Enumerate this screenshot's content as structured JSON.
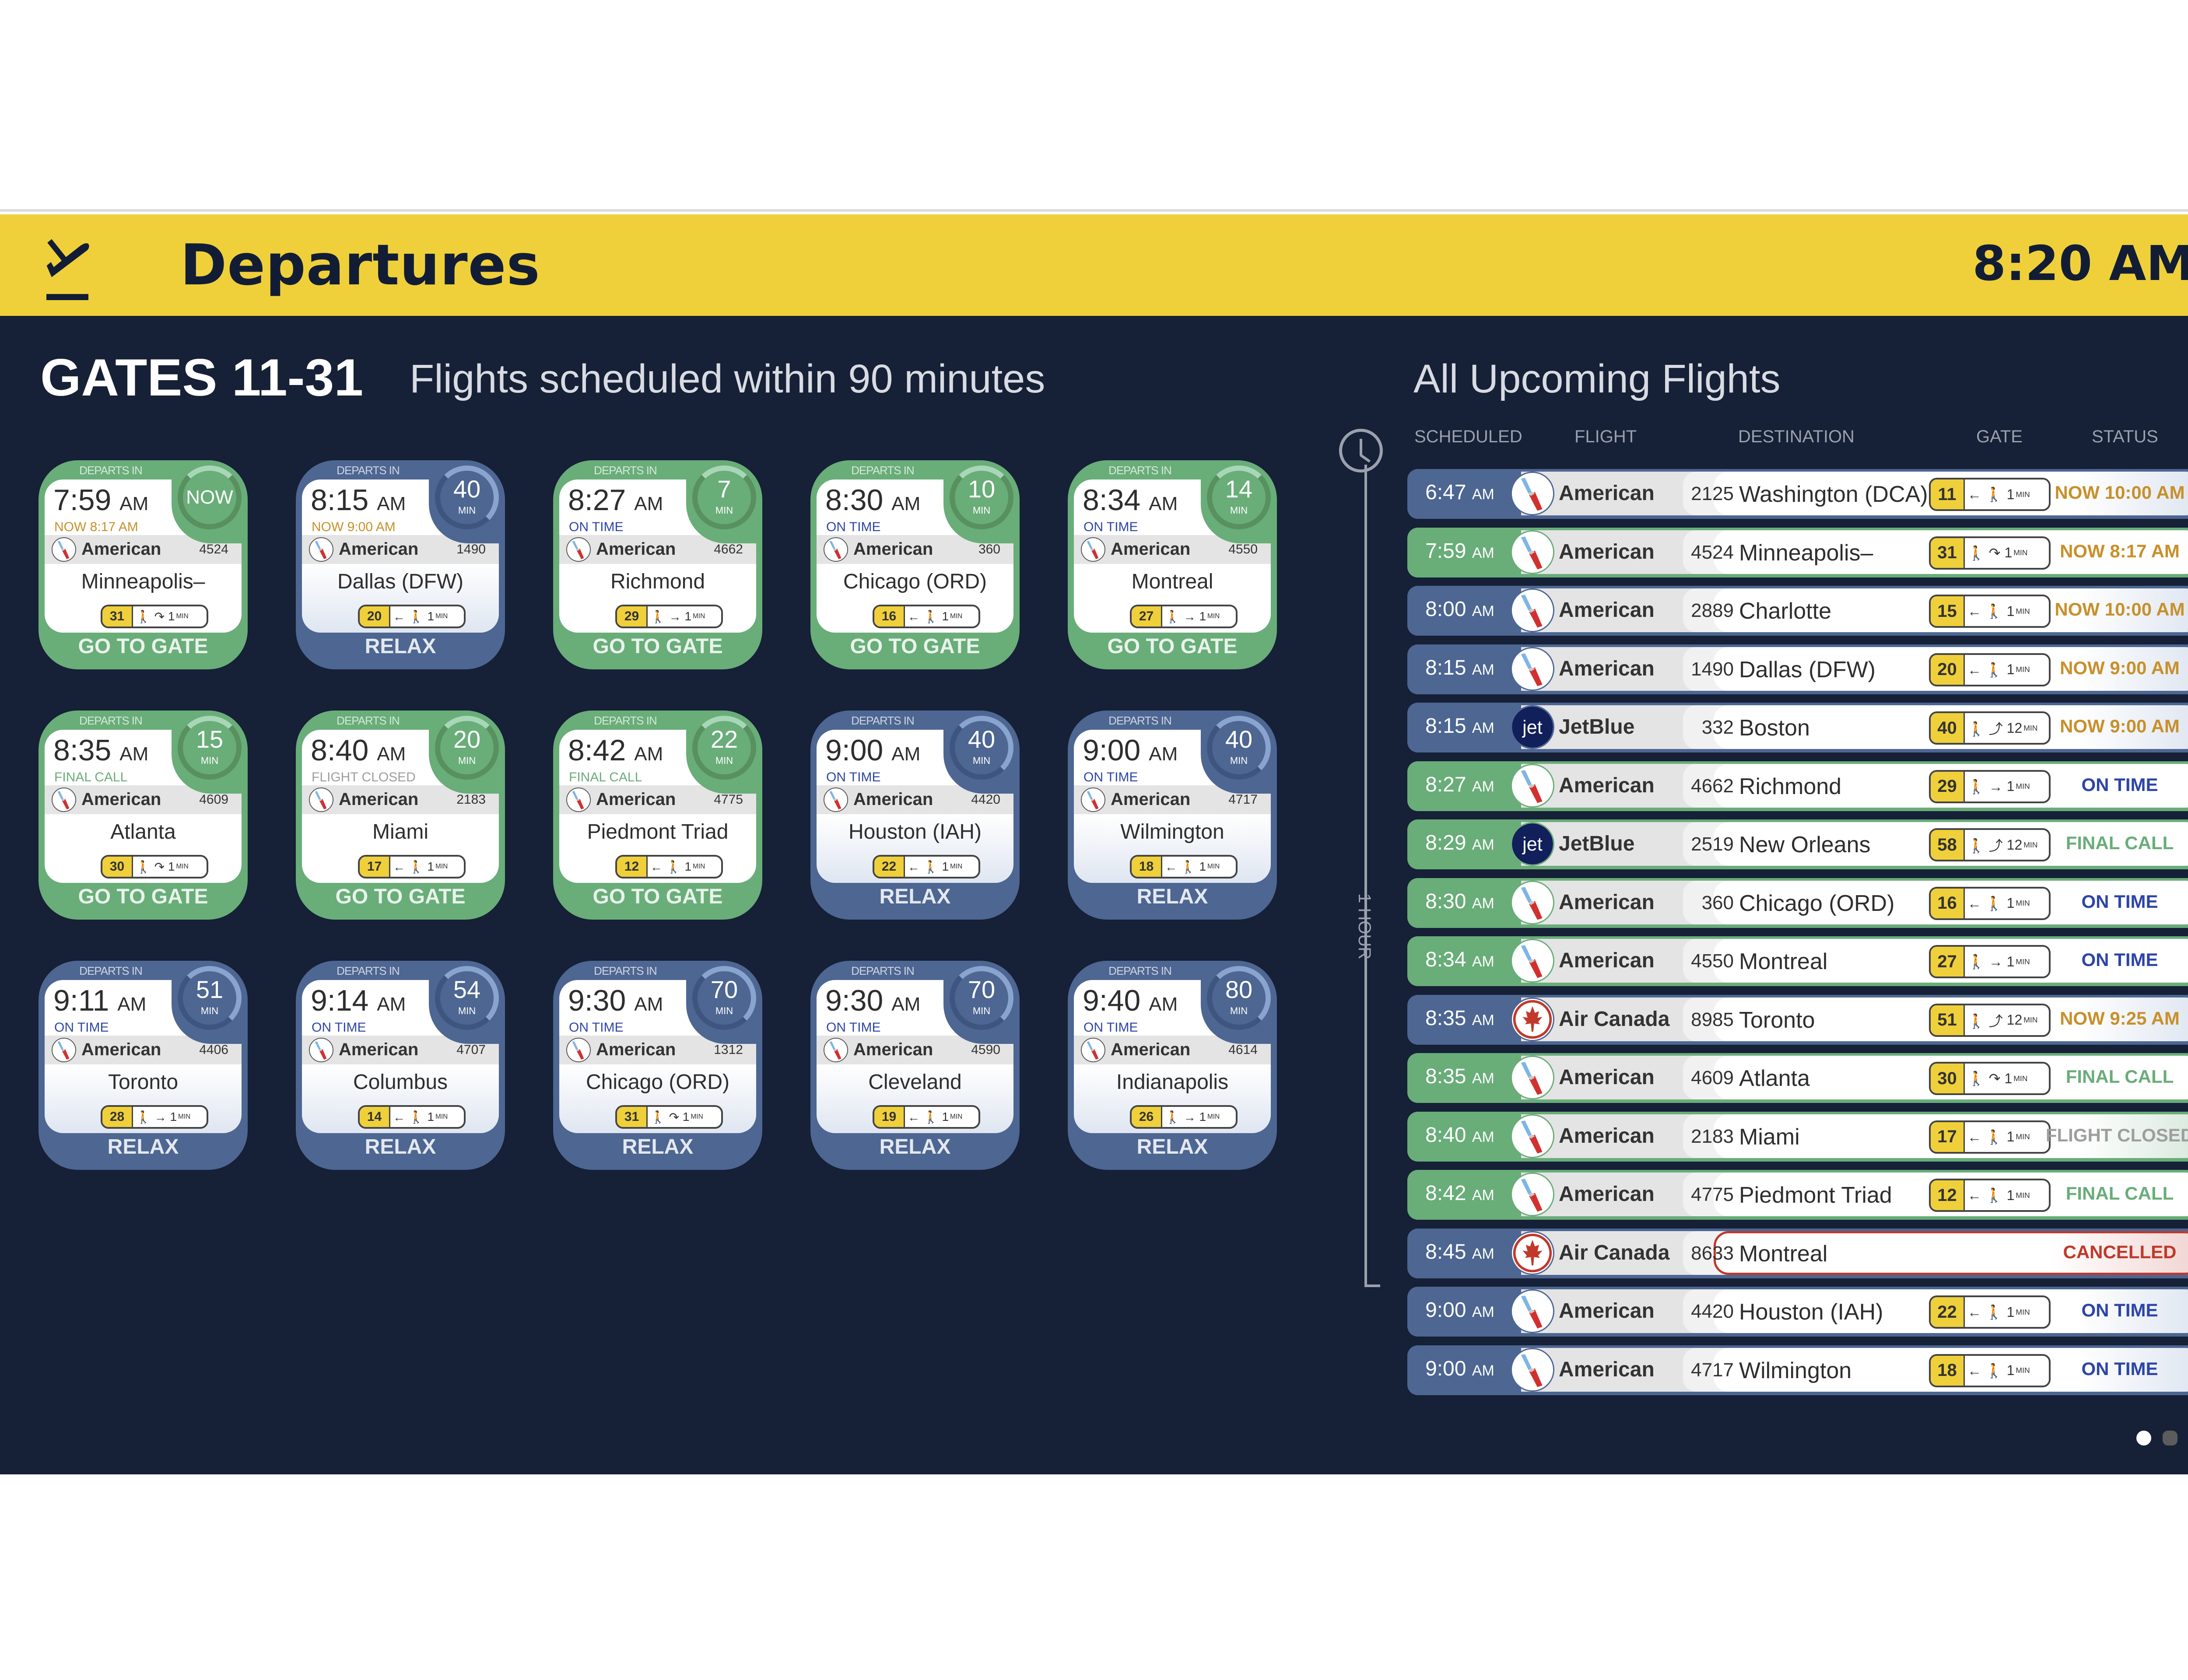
{
  "header": {
    "title": "Departures",
    "current_time": "8:20 AM",
    "icon": "plane-departure-icon",
    "background": "#efd03a"
  },
  "colors": {
    "go_to_gate": "#69ad79",
    "relax": "#4d6692",
    "background": "#162036",
    "gate_badge": "#efd03a",
    "status_now": "#c8902a",
    "status_on_time": "#2d45a8",
    "status_final_call": "#69ad79",
    "status_closed": "#9e9e9e",
    "status_cancelled": "#c0392b"
  },
  "gates_panel": {
    "title": "GATES 11-31",
    "subtitle": "Flights scheduled within 90 minutes",
    "departs_in_label": "DEPARTS IN",
    "min_label": "MIN",
    "cards": [
      {
        "time": "7:59",
        "ampm": "AM",
        "status": "NOW 8:17 AM",
        "status_type": "now",
        "airline": "American",
        "flight": "4524",
        "destination": "Minneapolis–",
        "gate": "31",
        "walk": "🚶 ↷",
        "walk_min": "1",
        "departs_in": "NOW",
        "action": "GO TO GATE",
        "theme": "green"
      },
      {
        "time": "8:15",
        "ampm": "AM",
        "status": "NOW 9:00 AM",
        "status_type": "now",
        "airline": "American",
        "flight": "1490",
        "destination": "Dallas (DFW)",
        "gate": "20",
        "walk": "← 🚶",
        "walk_min": "1",
        "departs_in": "40",
        "action": "RELAX",
        "theme": "blue"
      },
      {
        "time": "8:27",
        "ampm": "AM",
        "status": "ON TIME",
        "status_type": "ontime",
        "airline": "American",
        "flight": "4662",
        "destination": "Richmond",
        "gate": "29",
        "walk": "🚶 →",
        "walk_min": "1",
        "departs_in": "7",
        "action": "GO TO GATE",
        "theme": "green"
      },
      {
        "time": "8:30",
        "ampm": "AM",
        "status": "ON TIME",
        "status_type": "ontime",
        "airline": "American",
        "flight": "360",
        "destination": "Chicago (ORD)",
        "gate": "16",
        "walk": "← 🚶",
        "walk_min": "1",
        "departs_in": "10",
        "action": "GO TO GATE",
        "theme": "green"
      },
      {
        "time": "8:34",
        "ampm": "AM",
        "status": "ON TIME",
        "status_type": "ontime",
        "airline": "American",
        "flight": "4550",
        "destination": "Montreal",
        "gate": "27",
        "walk": "🚶 →",
        "walk_min": "1",
        "departs_in": "14",
        "action": "GO TO GATE",
        "theme": "green"
      },
      {
        "time": "8:35",
        "ampm": "AM",
        "status": "FINAL CALL",
        "status_type": "final",
        "airline": "American",
        "flight": "4609",
        "destination": "Atlanta",
        "gate": "30",
        "walk": "🚶 ↷",
        "walk_min": "1",
        "departs_in": "15",
        "action": "GO TO GATE",
        "theme": "green"
      },
      {
        "time": "8:40",
        "ampm": "AM",
        "status": "FLIGHT CLOSED",
        "status_type": "closed",
        "airline": "American",
        "flight": "2183",
        "destination": "Miami",
        "gate": "17",
        "walk": "← 🚶",
        "walk_min": "1",
        "departs_in": "20",
        "action": "GO TO GATE",
        "theme": "green"
      },
      {
        "time": "8:42",
        "ampm": "AM",
        "status": "FINAL CALL",
        "status_type": "final",
        "airline": "American",
        "flight": "4775",
        "destination": "Piedmont Triad",
        "gate": "12",
        "walk": "← 🚶",
        "walk_min": "1",
        "departs_in": "22",
        "action": "GO TO GATE",
        "theme": "green"
      },
      {
        "time": "9:00",
        "ampm": "AM",
        "status": "ON TIME",
        "status_type": "ontime",
        "airline": "American",
        "flight": "4420",
        "destination": "Houston (IAH)",
        "gate": "22",
        "walk": "← 🚶",
        "walk_min": "1",
        "departs_in": "40",
        "action": "RELAX",
        "theme": "blue"
      },
      {
        "time": "9:00",
        "ampm": "AM",
        "status": "ON TIME",
        "status_type": "ontime",
        "airline": "American",
        "flight": "4717",
        "destination": "Wilmington",
        "gate": "18",
        "walk": "← 🚶",
        "walk_min": "1",
        "departs_in": "40",
        "action": "RELAX",
        "theme": "blue"
      },
      {
        "time": "9:11",
        "ampm": "AM",
        "status": "ON TIME",
        "status_type": "ontime",
        "airline": "American",
        "flight": "4406",
        "destination": "Toronto",
        "gate": "28",
        "walk": "🚶 →",
        "walk_min": "1",
        "departs_in": "51",
        "action": "RELAX",
        "theme": "blue"
      },
      {
        "time": "9:14",
        "ampm": "AM",
        "status": "ON TIME",
        "status_type": "ontime",
        "airline": "American",
        "flight": "4707",
        "destination": "Columbus",
        "gate": "14",
        "walk": "← 🚶",
        "walk_min": "1",
        "departs_in": "54",
        "action": "RELAX",
        "theme": "blue"
      },
      {
        "time": "9:30",
        "ampm": "AM",
        "status": "ON TIME",
        "status_type": "ontime",
        "airline": "American",
        "flight": "1312",
        "destination": "Chicago (ORD)",
        "gate": "31",
        "walk": "🚶 ↷",
        "walk_min": "1",
        "departs_in": "70",
        "action": "RELAX",
        "theme": "blue"
      },
      {
        "time": "9:30",
        "ampm": "AM",
        "status": "ON TIME",
        "status_type": "ontime",
        "airline": "American",
        "flight": "4590",
        "destination": "Cleveland",
        "gate": "19",
        "walk": "← 🚶",
        "walk_min": "1",
        "departs_in": "70",
        "action": "RELAX",
        "theme": "blue"
      },
      {
        "time": "9:40",
        "ampm": "AM",
        "status": "ON TIME",
        "status_type": "ontime",
        "airline": "American",
        "flight": "4614",
        "destination": "Indianapolis",
        "gate": "26",
        "walk": "🚶 →",
        "walk_min": "1",
        "departs_in": "80",
        "action": "RELAX",
        "theme": "blue"
      }
    ]
  },
  "upcoming_panel": {
    "title": "All Upcoming Flights",
    "columns": [
      "SCHEDULED",
      "FLIGHT",
      "DESTINATION",
      "GATE",
      "STATUS"
    ],
    "timeline_label": "1 HOUR",
    "min_label": "MIN",
    "rows": [
      {
        "time": "6:47",
        "ampm": "AM",
        "airline": "American",
        "logo": "aa",
        "flight": "2125",
        "destination": "Washington (DCA)",
        "gate": "11",
        "walk": "← 🚶",
        "walk_min": "1",
        "status": "NOW 10:00 AM",
        "status_type": "now",
        "theme": "blue"
      },
      {
        "time": "7:59",
        "ampm": "AM",
        "airline": "American",
        "logo": "aa",
        "flight": "4524",
        "destination": "Minneapolis–",
        "gate": "31",
        "walk": "🚶 ↷",
        "walk_min": "1",
        "status": "NOW 8:17 AM",
        "status_type": "now",
        "theme": "green"
      },
      {
        "time": "8:00",
        "ampm": "AM",
        "airline": "American",
        "logo": "aa",
        "flight": "2889",
        "destination": "Charlotte",
        "gate": "15",
        "walk": "← 🚶",
        "walk_min": "1",
        "status": "NOW 10:00 AM",
        "status_type": "now",
        "theme": "blue"
      },
      {
        "time": "8:15",
        "ampm": "AM",
        "airline": "American",
        "logo": "aa",
        "flight": "1490",
        "destination": "Dallas (DFW)",
        "gate": "20",
        "walk": "← 🚶",
        "walk_min": "1",
        "status": "NOW 9:00 AM",
        "status_type": "now",
        "theme": "blue"
      },
      {
        "time": "8:15",
        "ampm": "AM",
        "airline": "JetBlue",
        "logo": "jetblue",
        "flight": "332",
        "destination": "Boston",
        "gate": "40",
        "walk": "🚶 ⤴",
        "walk_min": "12",
        "status": "NOW 9:00 AM",
        "status_type": "now",
        "theme": "blue"
      },
      {
        "time": "8:27",
        "ampm": "AM",
        "airline": "American",
        "logo": "aa",
        "flight": "4662",
        "destination": "Richmond",
        "gate": "29",
        "walk": "🚶 →",
        "walk_min": "1",
        "status": "ON TIME",
        "status_type": "ontime",
        "theme": "green"
      },
      {
        "time": "8:29",
        "ampm": "AM",
        "airline": "JetBlue",
        "logo": "jetblue",
        "flight": "2519",
        "destination": "New Orleans",
        "gate": "58",
        "walk": "🚶 ⤴",
        "walk_min": "12",
        "status": "FINAL CALL",
        "status_type": "final",
        "theme": "green"
      },
      {
        "time": "8:30",
        "ampm": "AM",
        "airline": "American",
        "logo": "aa",
        "flight": "360",
        "destination": "Chicago (ORD)",
        "gate": "16",
        "walk": "← 🚶",
        "walk_min": "1",
        "status": "ON TIME",
        "status_type": "ontime",
        "theme": "green"
      },
      {
        "time": "8:34",
        "ampm": "AM",
        "airline": "American",
        "logo": "aa",
        "flight": "4550",
        "destination": "Montreal",
        "gate": "27",
        "walk": "🚶 →",
        "walk_min": "1",
        "status": "ON TIME",
        "status_type": "ontime",
        "theme": "green"
      },
      {
        "time": "8:35",
        "ampm": "AM",
        "airline": "Air Canada",
        "logo": "aircanada",
        "flight": "8985",
        "destination": "Toronto",
        "gate": "51",
        "walk": "🚶 ⤴",
        "walk_min": "12",
        "status": "NOW 9:25 AM",
        "status_type": "now",
        "theme": "blue"
      },
      {
        "time": "8:35",
        "ampm": "AM",
        "airline": "American",
        "logo": "aa",
        "flight": "4609",
        "destination": "Atlanta",
        "gate": "30",
        "walk": "🚶 ↷",
        "walk_min": "1",
        "status": "FINAL CALL",
        "status_type": "final",
        "theme": "green"
      },
      {
        "time": "8:40",
        "ampm": "AM",
        "airline": "American",
        "logo": "aa",
        "flight": "2183",
        "destination": "Miami",
        "gate": "17",
        "walk": "← 🚶",
        "walk_min": "1",
        "status": "FLIGHT CLOSED",
        "status_type": "closed",
        "theme": "green"
      },
      {
        "time": "8:42",
        "ampm": "AM",
        "airline": "American",
        "logo": "aa",
        "flight": "4775",
        "destination": "Piedmont Triad",
        "gate": "12",
        "walk": "← 🚶",
        "walk_min": "1",
        "status": "FINAL CALL",
        "status_type": "final",
        "theme": "green"
      },
      {
        "time": "8:45",
        "ampm": "AM",
        "airline": "Air Canada",
        "logo": "aircanada",
        "flight": "8633",
        "destination": "Montreal",
        "gate": "",
        "walk": "",
        "walk_min": "",
        "status": "CANCELLED",
        "status_type": "cancelled",
        "theme": "blue"
      },
      {
        "time": "9:00",
        "ampm": "AM",
        "airline": "American",
        "logo": "aa",
        "flight": "4420",
        "destination": "Houston (IAH)",
        "gate": "22",
        "walk": "← 🚶",
        "walk_min": "1",
        "status": "ON TIME",
        "status_type": "ontime",
        "theme": "blue"
      },
      {
        "time": "9:00",
        "ampm": "AM",
        "airline": "American",
        "logo": "aa",
        "flight": "4717",
        "destination": "Wilmington",
        "gate": "18",
        "walk": "← 🚶",
        "walk_min": "1",
        "status": "ON TIME",
        "status_type": "ontime",
        "theme": "blue"
      }
    ]
  },
  "pagination": {
    "pages": 3,
    "active": 0
  }
}
